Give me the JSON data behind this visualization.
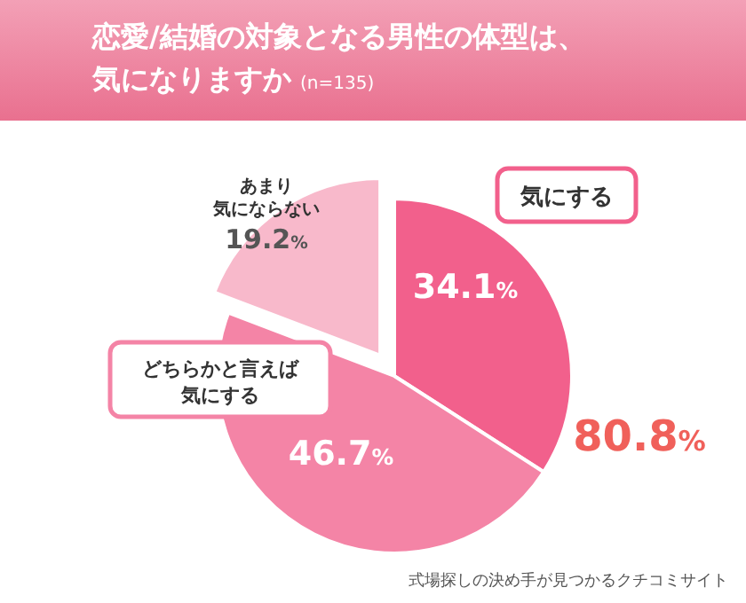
{
  "chart_data": {
    "type": "pie",
    "title": "恋愛/結婚の対象となる男性の体型は、気になりますか",
    "subtitle": "(n=135)",
    "categories": [
      "気にする",
      "どちらかと言えば気にする",
      "あまり気にならない"
    ],
    "values": [
      34.1,
      46.7,
      19.2
    ],
    "colors": [
      "#f2608c",
      "#f484a6",
      "#f8b9cb"
    ],
    "value_labels": [
      "34.1%",
      "46.7%",
      "19.2%"
    ],
    "annotations": [
      "80.8%",
      "式場探しの決め手が見つかるクチコミサイト"
    ]
  }
}
